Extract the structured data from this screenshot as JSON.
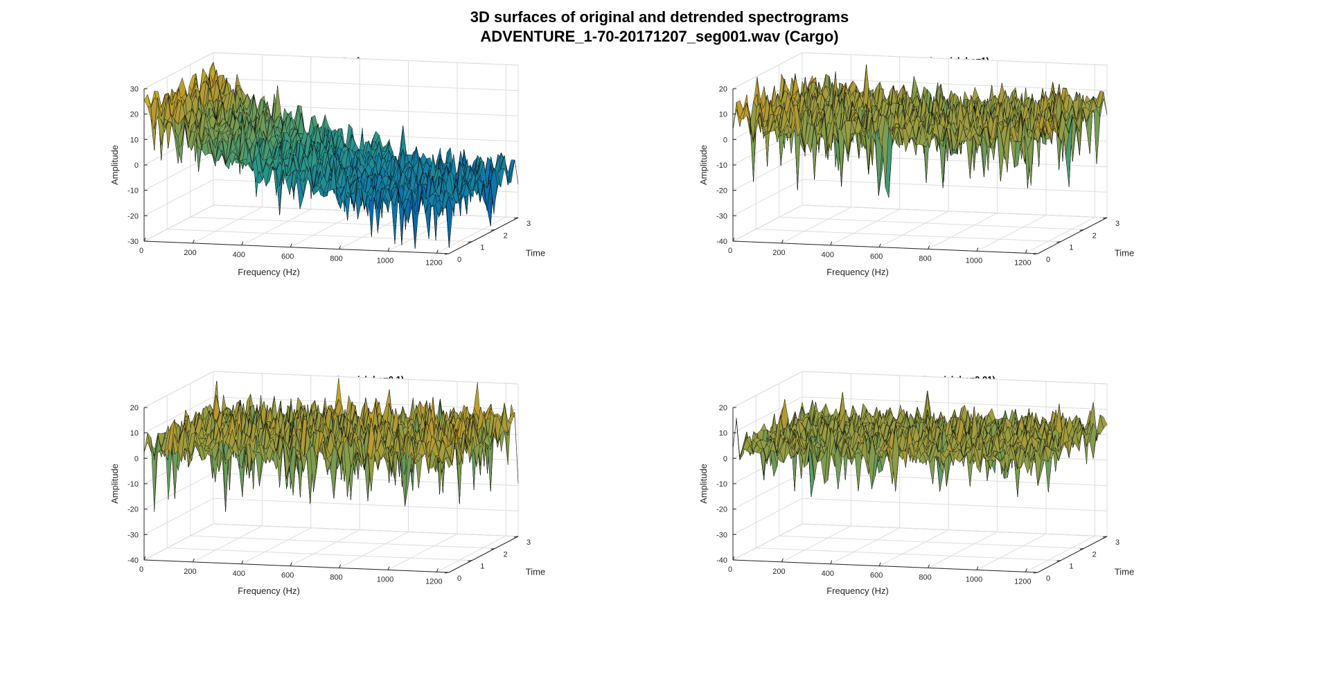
{
  "figure": {
    "title": "3D surfaces of original and detrended spectrograms",
    "subtitle": "ADVENTURE_1-70-20171207_seg001.wav (Cargo)"
  },
  "colors": {
    "axis_edge": "#262626",
    "grid": "#dcdcdc",
    "mesh_edge": "#000000",
    "parula_low": "#3e26a8",
    "parula_mid": "#21a6d9",
    "parula_high": "#d8c23a"
  },
  "chart_data": [
    {
      "type": "surface3d",
      "title": "Original 3D Surface",
      "xlabel": "Frequency (Hz)",
      "ylabel": "Time",
      "zlabel": "Amplitude",
      "xlim": [
        0,
        1250
      ],
      "ylim": [
        0,
        3
      ],
      "zlim": [
        -30,
        30
      ],
      "xticks": [
        "0",
        "200",
        "400",
        "600",
        "800",
        "1000",
        "1200"
      ],
      "yticks": [
        "0",
        "1",
        "2",
        "3"
      ],
      "zticks": [
        "-30",
        "-20",
        "-10",
        "0",
        "10",
        "20",
        "30"
      ],
      "z_trend_profile": [
        [
          0,
          22
        ],
        [
          100,
          16
        ],
        [
          200,
          10
        ],
        [
          400,
          3
        ],
        [
          600,
          -3
        ],
        [
          800,
          -8
        ],
        [
          1000,
          -10
        ],
        [
          1250,
          -10
        ]
      ],
      "noise_amplitude": 5,
      "grid": true
    },
    {
      "type": "surface3d",
      "title": "Detrended 3D surface (alpha=1)",
      "xlabel": "Frequency (Hz)",
      "ylabel": "Time",
      "zlabel": "Amplitude",
      "xlim": [
        0,
        1250
      ],
      "ylim": [
        0,
        3
      ],
      "zlim": [
        -40,
        20
      ],
      "xticks": [
        "0",
        "200",
        "400",
        "600",
        "800",
        "1000",
        "1200"
      ],
      "yticks": [
        "0",
        "1",
        "2",
        "3"
      ],
      "zticks": [
        "-40",
        "-30",
        "-20",
        "-10",
        "0",
        "10",
        "20"
      ],
      "z_trend_profile": [
        [
          0,
          8
        ],
        [
          200,
          5
        ],
        [
          600,
          3
        ],
        [
          1000,
          4
        ],
        [
          1250,
          6
        ]
      ],
      "noise_amplitude": 6,
      "grid": true
    },
    {
      "type": "surface3d",
      "title": "Detrended 3D surface (alpha=0.1)",
      "xlabel": "Frequency (Hz)",
      "ylabel": "Time",
      "zlabel": "Amplitude",
      "xlim": [
        0,
        1250
      ],
      "ylim": [
        0,
        3
      ],
      "zlim": [
        -40,
        20
      ],
      "xticks": [
        "0",
        "200",
        "400",
        "600",
        "800",
        "1000",
        "1200"
      ],
      "yticks": [
        "0",
        "1",
        "2",
        "3"
      ],
      "zticks": [
        "-40",
        "-30",
        "-20",
        "-10",
        "0",
        "10",
        "20"
      ],
      "z_trend_profile": [
        [
          0,
          4
        ],
        [
          400,
          5
        ],
        [
          800,
          5
        ],
        [
          1250,
          6
        ]
      ],
      "noise_amplitude": 6,
      "grid": true
    },
    {
      "type": "surface3d",
      "title": "Detrended 3D surface (alpha=0.01)",
      "xlabel": "Frequency (Hz)",
      "ylabel": "Time",
      "zlabel": "Amplitude",
      "xlim": [
        0,
        1250
      ],
      "ylim": [
        0,
        3
      ],
      "zlim": [
        -40,
        20
      ],
      "xticks": [
        "0",
        "200",
        "400",
        "600",
        "800",
        "1000",
        "1200"
      ],
      "yticks": [
        "0",
        "1",
        "2",
        "3"
      ],
      "zticks": [
        "-40",
        "-30",
        "-20",
        "-10",
        "0",
        "10",
        "20"
      ],
      "z_trend_profile": [
        [
          0,
          3
        ],
        [
          600,
          4
        ],
        [
          1250,
          4
        ]
      ],
      "noise_amplitude": 4.5,
      "grid": true
    }
  ]
}
